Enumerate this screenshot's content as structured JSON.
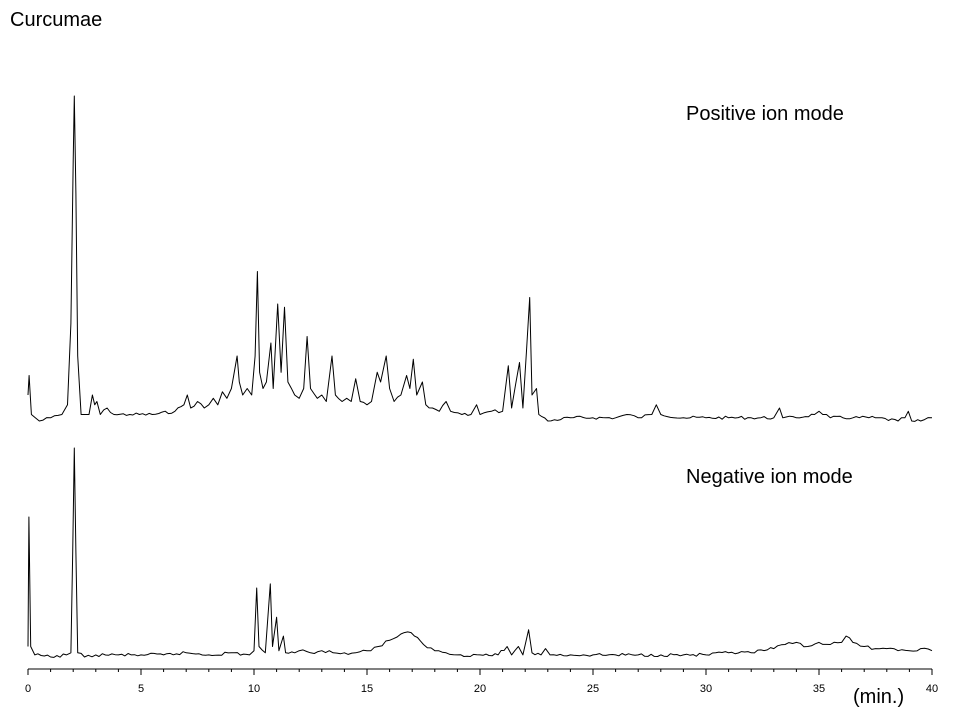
{
  "title": "Curcumae",
  "unit_label": "(min.)",
  "chart_data": {
    "type": "line",
    "title": "Curcumae",
    "xlabel": "(min.)",
    "xlim": [
      0,
      40
    ],
    "x_ticks": [
      0,
      5,
      10,
      15,
      20,
      25,
      30,
      35,
      40
    ],
    "grid": false,
    "line_color": "#000000",
    "series": [
      {
        "name": "Positive ion mode",
        "points": [
          [
            0.0,
            0.08
          ],
          [
            0.05,
            0.14
          ],
          [
            0.15,
            0.02
          ],
          [
            0.5,
            0.0
          ],
          [
            1.0,
            0.01
          ],
          [
            1.5,
            0.02
          ],
          [
            1.75,
            0.05
          ],
          [
            1.9,
            0.3
          ],
          [
            2.0,
            0.8
          ],
          [
            2.05,
            1.0
          ],
          [
            2.12,
            0.7
          ],
          [
            2.2,
            0.2
          ],
          [
            2.35,
            0.02
          ],
          [
            2.7,
            0.02
          ],
          [
            2.85,
            0.08
          ],
          [
            2.95,
            0.05
          ],
          [
            3.05,
            0.06
          ],
          [
            3.2,
            0.02
          ],
          [
            3.5,
            0.04
          ],
          [
            3.8,
            0.02
          ],
          [
            4.5,
            0.02
          ],
          [
            5.5,
            0.02
          ],
          [
            6.5,
            0.03
          ],
          [
            6.9,
            0.05
          ],
          [
            7.05,
            0.08
          ],
          [
            7.2,
            0.04
          ],
          [
            7.5,
            0.06
          ],
          [
            7.8,
            0.04
          ],
          [
            8.0,
            0.05
          ],
          [
            8.2,
            0.07
          ],
          [
            8.4,
            0.05
          ],
          [
            8.6,
            0.09
          ],
          [
            8.8,
            0.07
          ],
          [
            9.0,
            0.1
          ],
          [
            9.1,
            0.14
          ],
          [
            9.25,
            0.2
          ],
          [
            9.35,
            0.12
          ],
          [
            9.5,
            0.08
          ],
          [
            9.7,
            0.1
          ],
          [
            9.9,
            0.08
          ],
          [
            10.05,
            0.2
          ],
          [
            10.15,
            0.46
          ],
          [
            10.25,
            0.15
          ],
          [
            10.4,
            0.1
          ],
          [
            10.55,
            0.12
          ],
          [
            10.75,
            0.24
          ],
          [
            10.85,
            0.1
          ],
          [
            11.05,
            0.36
          ],
          [
            11.2,
            0.15
          ],
          [
            11.35,
            0.35
          ],
          [
            11.5,
            0.12
          ],
          [
            11.8,
            0.08
          ],
          [
            12.0,
            0.07
          ],
          [
            12.2,
            0.1
          ],
          [
            12.35,
            0.26
          ],
          [
            12.5,
            0.1
          ],
          [
            12.8,
            0.07
          ],
          [
            13.0,
            0.08
          ],
          [
            13.2,
            0.06
          ],
          [
            13.45,
            0.2
          ],
          [
            13.6,
            0.08
          ],
          [
            13.9,
            0.06
          ],
          [
            14.1,
            0.07
          ],
          [
            14.3,
            0.06
          ],
          [
            14.5,
            0.13
          ],
          [
            14.7,
            0.06
          ],
          [
            15.0,
            0.05
          ],
          [
            15.2,
            0.06
          ],
          [
            15.45,
            0.15
          ],
          [
            15.6,
            0.12
          ],
          [
            15.85,
            0.2
          ],
          [
            16.0,
            0.1
          ],
          [
            16.2,
            0.06
          ],
          [
            16.5,
            0.08
          ],
          [
            16.75,
            0.14
          ],
          [
            16.9,
            0.1
          ],
          [
            17.05,
            0.19
          ],
          [
            17.2,
            0.08
          ],
          [
            17.45,
            0.12
          ],
          [
            17.6,
            0.05
          ],
          [
            17.9,
            0.04
          ],
          [
            18.2,
            0.03
          ],
          [
            18.5,
            0.06
          ],
          [
            18.7,
            0.03
          ],
          [
            19.2,
            0.02
          ],
          [
            19.6,
            0.02
          ],
          [
            19.85,
            0.05
          ],
          [
            20.0,
            0.02
          ],
          [
            20.5,
            0.03
          ],
          [
            21.0,
            0.03
          ],
          [
            21.25,
            0.17
          ],
          [
            21.4,
            0.04
          ],
          [
            21.75,
            0.18
          ],
          [
            21.9,
            0.04
          ],
          [
            22.2,
            0.38
          ],
          [
            22.3,
            0.08
          ],
          [
            22.5,
            0.1
          ],
          [
            22.6,
            0.02
          ],
          [
            23.0,
            0.0
          ],
          [
            24.0,
            0.01
          ],
          [
            25.0,
            0.01
          ],
          [
            26.0,
            0.01
          ],
          [
            26.5,
            0.02
          ],
          [
            27.0,
            0.01
          ],
          [
            27.6,
            0.02
          ],
          [
            27.8,
            0.05
          ],
          [
            28.0,
            0.02
          ],
          [
            29.0,
            0.01
          ],
          [
            30.0,
            0.01
          ],
          [
            31.0,
            0.01
          ],
          [
            32.0,
            0.01
          ],
          [
            33.0,
            0.01
          ],
          [
            33.25,
            0.04
          ],
          [
            33.4,
            0.01
          ],
          [
            34.0,
            0.01
          ],
          [
            34.8,
            0.02
          ],
          [
            35.0,
            0.03
          ],
          [
            35.5,
            0.01
          ],
          [
            36.5,
            0.01
          ],
          [
            37.5,
            0.01
          ],
          [
            38.5,
            0.0
          ],
          [
            38.8,
            0.01
          ],
          [
            38.95,
            0.03
          ],
          [
            39.1,
            0.0
          ],
          [
            39.5,
            0.0
          ],
          [
            40.0,
            0.01
          ]
        ]
      },
      {
        "name": "Negative ion mode",
        "points": [
          [
            0.0,
            0.05
          ],
          [
            0.04,
            0.67
          ],
          [
            0.12,
            0.05
          ],
          [
            0.3,
            0.01
          ],
          [
            1.0,
            0.0
          ],
          [
            1.7,
            0.01
          ],
          [
            1.9,
            0.02
          ],
          [
            1.98,
            0.5
          ],
          [
            2.05,
            1.0
          ],
          [
            2.12,
            0.5
          ],
          [
            2.2,
            0.02
          ],
          [
            2.5,
            0.0
          ],
          [
            3.0,
            0.01
          ],
          [
            4.0,
            0.01
          ],
          [
            5.0,
            0.01
          ],
          [
            6.0,
            0.01
          ],
          [
            7.0,
            0.02
          ],
          [
            8.0,
            0.01
          ],
          [
            9.0,
            0.02
          ],
          [
            9.8,
            0.01
          ],
          [
            10.0,
            0.03
          ],
          [
            10.12,
            0.33
          ],
          [
            10.22,
            0.05
          ],
          [
            10.5,
            0.02
          ],
          [
            10.72,
            0.35
          ],
          [
            10.82,
            0.05
          ],
          [
            11.0,
            0.19
          ],
          [
            11.1,
            0.03
          ],
          [
            11.3,
            0.1
          ],
          [
            11.4,
            0.02
          ],
          [
            11.8,
            0.02
          ],
          [
            12.0,
            0.03
          ],
          [
            12.5,
            0.02
          ],
          [
            13.0,
            0.03
          ],
          [
            13.5,
            0.02
          ],
          [
            14.0,
            0.02
          ],
          [
            14.5,
            0.02
          ],
          [
            15.0,
            0.03
          ],
          [
            15.5,
            0.05
          ],
          [
            16.0,
            0.08
          ],
          [
            16.5,
            0.11
          ],
          [
            16.8,
            0.12
          ],
          [
            17.1,
            0.1
          ],
          [
            17.5,
            0.06
          ],
          [
            18.0,
            0.03
          ],
          [
            18.5,
            0.02
          ],
          [
            19.0,
            0.01
          ],
          [
            20.0,
            0.01
          ],
          [
            20.8,
            0.01
          ],
          [
            21.2,
            0.05
          ],
          [
            21.4,
            0.01
          ],
          [
            21.7,
            0.05
          ],
          [
            21.9,
            0.01
          ],
          [
            22.15,
            0.13
          ],
          [
            22.3,
            0.02
          ],
          [
            22.7,
            0.01
          ],
          [
            22.9,
            0.04
          ],
          [
            23.1,
            0.01
          ],
          [
            24.0,
            0.01
          ],
          [
            25.0,
            0.01
          ],
          [
            26.0,
            0.01
          ],
          [
            27.0,
            0.01
          ],
          [
            28.0,
            0.01
          ],
          [
            29.0,
            0.01
          ],
          [
            30.0,
            0.01
          ],
          [
            31.0,
            0.02
          ],
          [
            32.0,
            0.02
          ],
          [
            33.0,
            0.04
          ],
          [
            33.5,
            0.06
          ],
          [
            34.0,
            0.07
          ],
          [
            34.5,
            0.05
          ],
          [
            35.0,
            0.07
          ],
          [
            35.5,
            0.06
          ],
          [
            36.0,
            0.07
          ],
          [
            36.2,
            0.1
          ],
          [
            36.5,
            0.07
          ],
          [
            37.0,
            0.05
          ],
          [
            37.5,
            0.04
          ],
          [
            38.0,
            0.04
          ],
          [
            38.5,
            0.03
          ],
          [
            39.0,
            0.03
          ],
          [
            39.5,
            0.04
          ],
          [
            40.0,
            0.03
          ]
        ]
      }
    ]
  }
}
